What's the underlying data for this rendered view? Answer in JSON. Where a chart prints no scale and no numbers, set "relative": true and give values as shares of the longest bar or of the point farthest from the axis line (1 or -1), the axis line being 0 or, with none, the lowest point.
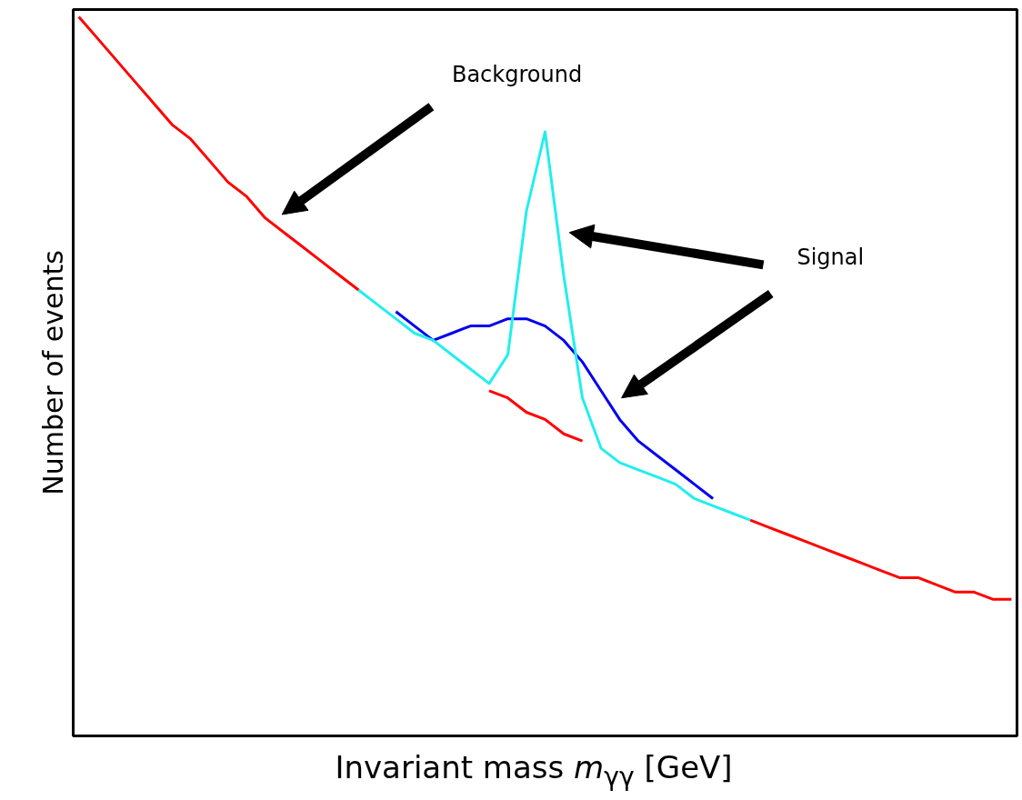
{
  "chart_data": {
    "type": "line",
    "relative": true,
    "xlabel": "Invariant mass m$_{γγ}$ [GeV]",
    "ylabel": "Number of events",
    "annotations": [
      "Background",
      "Signal"
    ],
    "categories": [
      null,
      null,
      null,
      null,
      null,
      null,
      null,
      null,
      null,
      null,
      null,
      null,
      null,
      null,
      null,
      null,
      null,
      null,
      null,
      null,
      null,
      null,
      null,
      null,
      null,
      null,
      null,
      null,
      null,
      null,
      null,
      null,
      null,
      null,
      null,
      null,
      null,
      null,
      null,
      null,
      null,
      null,
      null,
      null,
      null,
      null,
      null,
      null,
      null,
      null,
      null
    ],
    "series": [
      {
        "color": "#ff0000",
        "values": [
          1.0,
          0.97,
          0.94,
          0.91,
          0.88,
          0.85,
          0.83,
          0.8,
          0.77,
          0.75,
          0.72,
          0.7,
          0.68,
          0.66,
          0.64,
          0.62,
          null,
          null,
          null,
          null,
          null,
          null,
          0.48,
          0.47,
          0.45,
          0.44,
          0.42,
          0.41,
          null,
          null,
          null,
          null,
          null,
          null,
          null,
          null,
          0.3,
          0.29,
          0.28,
          0.27,
          0.26,
          0.25,
          0.24,
          0.23,
          0.22,
          0.22,
          0.21,
          0.2,
          0.2,
          0.19,
          0.19
        ]
      },
      {
        "color": "#0000ee",
        "values": [
          null,
          null,
          null,
          null,
          null,
          null,
          null,
          null,
          null,
          null,
          null,
          null,
          null,
          null,
          null,
          null,
          null,
          0.59,
          0.57,
          0.55,
          0.56,
          0.57,
          0.57,
          0.58,
          0.58,
          0.57,
          0.55,
          0.52,
          0.48,
          0.44,
          0.41,
          0.39,
          0.37,
          0.35,
          0.33,
          null,
          null,
          null,
          null,
          null,
          null,
          null,
          null,
          null,
          null,
          null,
          null,
          null,
          null,
          null,
          null
        ]
      },
      {
        "color": "#22eeee",
        "values": [
          null,
          null,
          null,
          null,
          null,
          null,
          null,
          null,
          null,
          null,
          null,
          null,
          null,
          null,
          null,
          0.62,
          0.6,
          0.58,
          0.56,
          0.55,
          0.53,
          0.51,
          0.49,
          0.53,
          0.73,
          0.84,
          0.64,
          0.47,
          0.4,
          0.38,
          0.37,
          0.36,
          0.35,
          0.33,
          0.32,
          0.31,
          0.3,
          null,
          null,
          null,
          null,
          null,
          null,
          null,
          null,
          null,
          null,
          null,
          null,
          null,
          null
        ]
      }
    ]
  }
}
